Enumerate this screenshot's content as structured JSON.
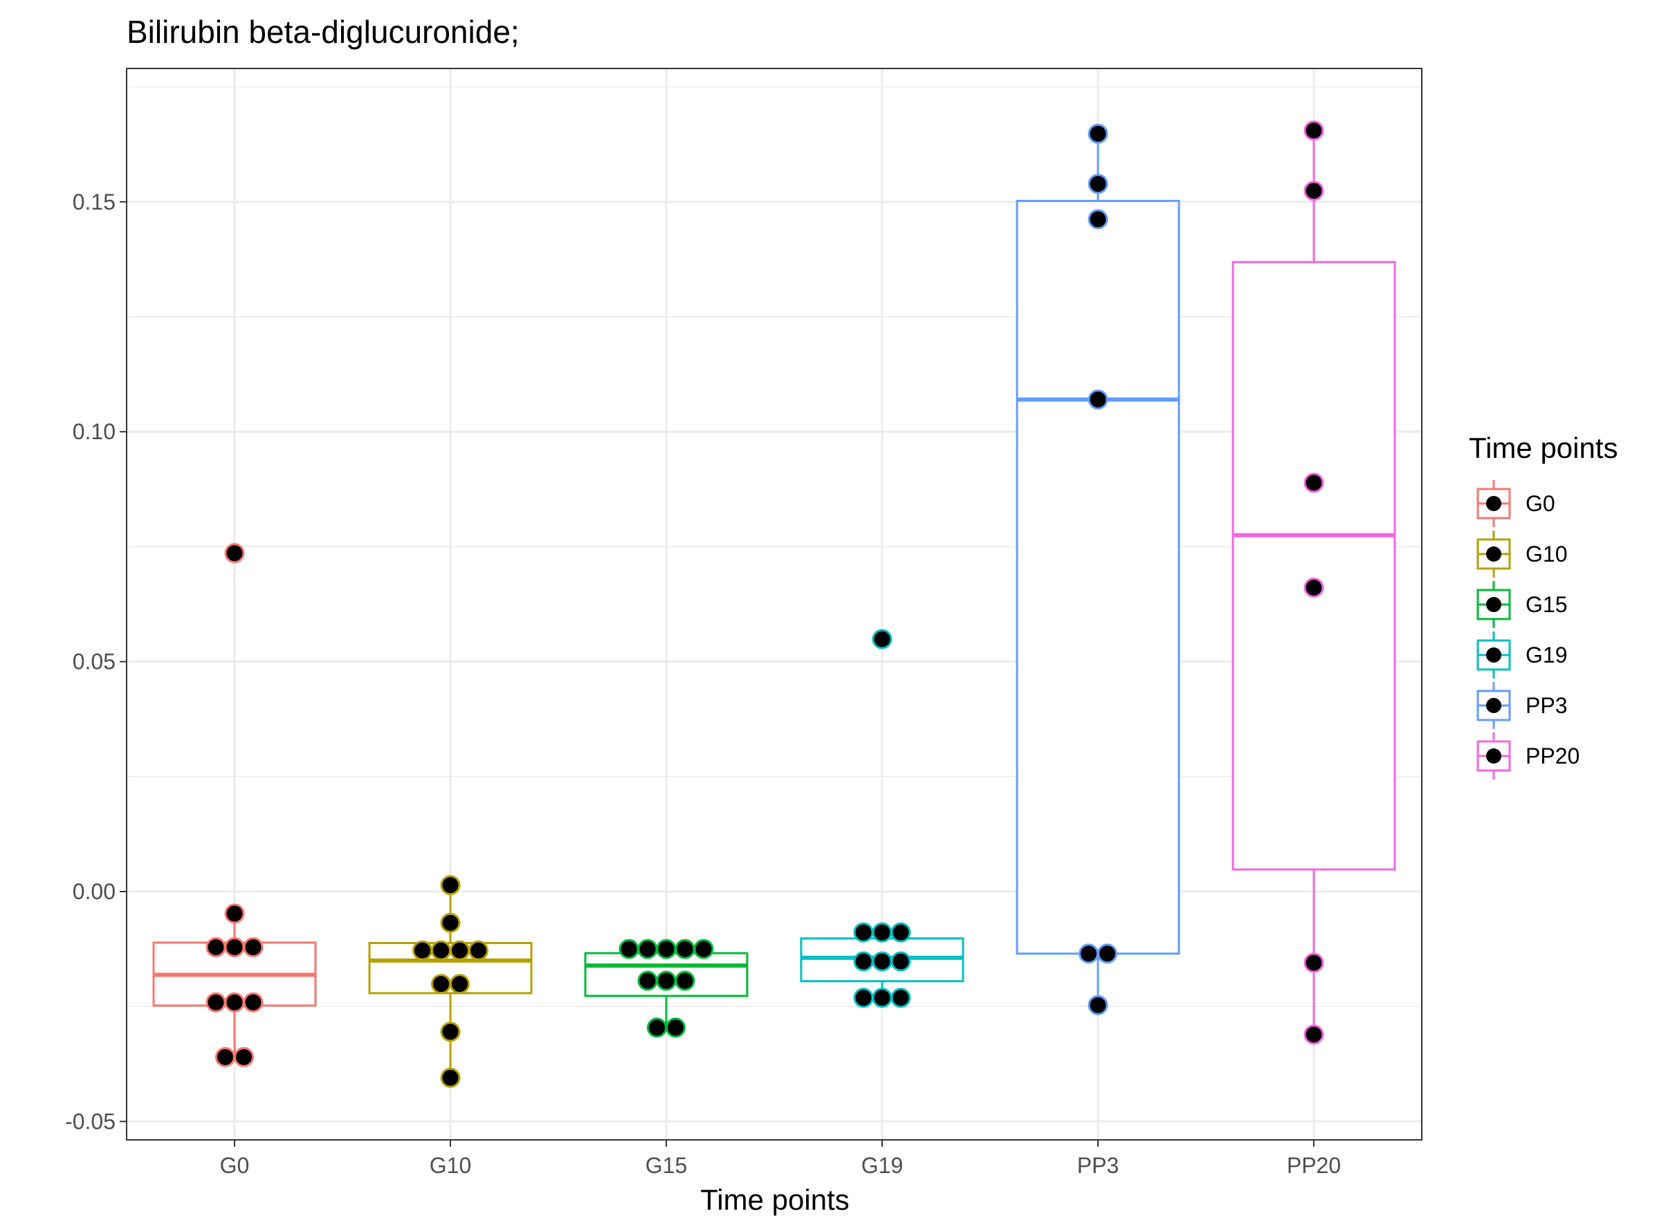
{
  "chart_data": {
    "type": "box",
    "title": "Bilirubin beta-diglucuronide;",
    "xlabel": "Time points",
    "ylabel": "",
    "ylim": [
      -0.054,
      0.179
    ],
    "yticks": [
      "-0.05",
      "0.00",
      "0.05",
      "0.10",
      "0.15"
    ],
    "grid": true,
    "legend": {
      "title": "Time points",
      "position": "right"
    },
    "categories": [
      "G0",
      "G10",
      "G15",
      "G19",
      "PP3",
      "PP20"
    ],
    "series": [
      {
        "name": "G0",
        "color": "#F8766D",
        "box": {
          "whisker_low": -0.036,
          "q1": -0.0248,
          "median": -0.0181,
          "q3": -0.0111,
          "whisker_high": -0.0048
        },
        "points": [
          0.0736,
          -0.0048,
          -0.0121,
          -0.0121,
          -0.0121,
          -0.0241,
          -0.0241,
          -0.0241,
          -0.036,
          -0.036
        ]
      },
      {
        "name": "G10",
        "color": "#B79F00",
        "box": {
          "whisker_low": -0.0405,
          "q1": -0.0221,
          "median": -0.015,
          "q3": -0.0112,
          "whisker_high": 0.0014
        },
        "points": [
          0.0014,
          -0.0068,
          -0.0128,
          -0.0128,
          -0.0128,
          -0.0128,
          -0.0201,
          -0.0201,
          -0.0305,
          -0.0405
        ]
      },
      {
        "name": "G15",
        "color": "#00BA38",
        "box": {
          "whisker_low": -0.0296,
          "q1": -0.0227,
          "median": -0.0161,
          "q3": -0.0134,
          "whisker_high": -0.0125
        },
        "points": [
          -0.0125,
          -0.0125,
          -0.0125,
          -0.0125,
          -0.0125,
          -0.0194,
          -0.0194,
          -0.0194,
          -0.0296,
          -0.0296
        ]
      },
      {
        "name": "G19",
        "color": "#00BFC4",
        "box": {
          "whisker_low": -0.0231,
          "q1": -0.0195,
          "median": -0.0144,
          "q3": -0.0102,
          "whisker_high": -0.0089
        },
        "points": [
          0.0549,
          -0.0089,
          -0.0089,
          -0.0089,
          -0.0152,
          -0.0152,
          -0.0152,
          -0.0231,
          -0.0231,
          -0.0231
        ]
      },
      {
        "name": "PP3",
        "color": "#619CFF",
        "box": {
          "whisker_low": -0.0247,
          "q1": -0.0135,
          "median": 0.107,
          "q3": 0.1502,
          "whisker_high": 0.1648
        },
        "points": [
          0.1648,
          0.1539,
          0.1462,
          0.107,
          -0.0135,
          -0.0135,
          -0.0247
        ]
      },
      {
        "name": "PP20",
        "color": "#F564E3",
        "box": {
          "whisker_low": -0.0311,
          "q1": 0.0048,
          "median": 0.0775,
          "q3": 0.1369,
          "whisker_high": 0.1655
        },
        "points": [
          0.1655,
          0.1524,
          0.0889,
          0.0661,
          -0.0155,
          -0.0311
        ]
      }
    ]
  }
}
